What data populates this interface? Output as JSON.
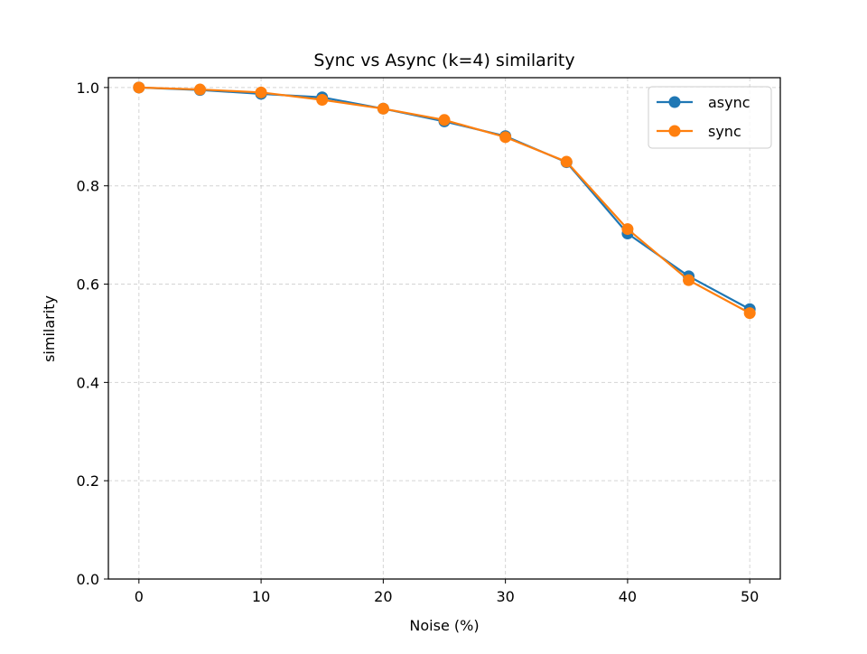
{
  "chart_data": {
    "type": "line",
    "title": "Sync vs Async (k=4) similarity",
    "xlabel": "Noise (%)",
    "ylabel": "similarity",
    "x": [
      0,
      5,
      10,
      15,
      20,
      25,
      30,
      35,
      40,
      45,
      50
    ],
    "xlim": [
      -2.5,
      52.5
    ],
    "ylim": [
      0.0,
      1.02
    ],
    "xticks": [
      0,
      10,
      20,
      30,
      40,
      50
    ],
    "xtick_labels": [
      "0",
      "10",
      "20",
      "30",
      "40",
      "50"
    ],
    "yticks": [
      0.0,
      0.2,
      0.4,
      0.6,
      0.8,
      1.0
    ],
    "ytick_labels": [
      "0.0",
      "0.2",
      "0.4",
      "0.6",
      "0.8",
      "1.0"
    ],
    "grid": true,
    "legend_position": "top-right",
    "series": [
      {
        "name": "async",
        "color": "#1f77b4",
        "values": [
          1.0,
          0.995,
          0.987,
          0.98,
          0.957,
          0.931,
          0.901,
          0.848,
          0.703,
          0.616,
          0.549
        ]
      },
      {
        "name": "sync",
        "color": "#ff7f0e",
        "values": [
          1.0,
          0.996,
          0.99,
          0.975,
          0.957,
          0.934,
          0.899,
          0.849,
          0.712,
          0.608,
          0.541
        ]
      }
    ]
  }
}
